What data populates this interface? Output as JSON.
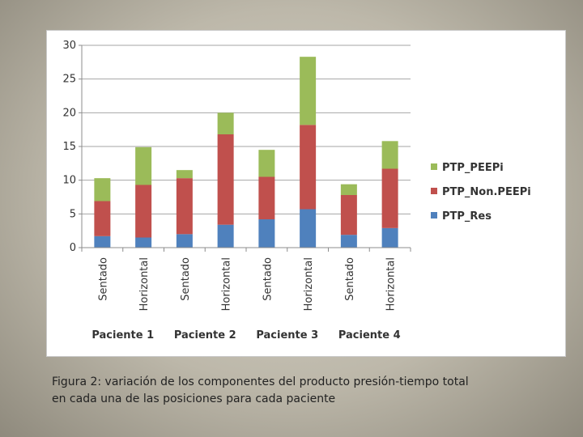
{
  "chart_data": {
    "type": "bar",
    "stacked": true,
    "categories": [
      "Sentado",
      "Horizontal",
      "Sentado",
      "Horizontal",
      "Sentado",
      "Horizontal",
      "Sentado",
      "Horizontal"
    ],
    "groups": [
      {
        "label": "Paciente 1",
        "categories": [
          0,
          1
        ]
      },
      {
        "label": "Paciente 2",
        "categories": [
          2,
          3
        ]
      },
      {
        "label": "Paciente 3",
        "categories": [
          4,
          5
        ]
      },
      {
        "label": "Paciente 4",
        "categories": [
          6,
          7
        ]
      }
    ],
    "series": [
      {
        "name": "PTP_Res",
        "color": "#4f81bd",
        "values": [
          1.7,
          1.5,
          2.0,
          3.4,
          4.2,
          5.7,
          1.9,
          2.9
        ]
      },
      {
        "name": "PTP_Non.PEEPi",
        "color": "#c0504d",
        "values": [
          5.2,
          7.8,
          8.3,
          13.4,
          6.3,
          12.5,
          5.9,
          8.8
        ]
      },
      {
        "name": "PTP_PEEPi",
        "color": "#9bbb59",
        "values": [
          3.4,
          5.6,
          1.2,
          3.2,
          4.0,
          10.1,
          1.6,
          4.1
        ]
      }
    ],
    "yticks": [
      0,
      5,
      10,
      15,
      20,
      25,
      30
    ],
    "ylim": [
      0,
      30
    ],
    "grid": true,
    "legend_position": "right"
  },
  "caption": {
    "line1": "Figura 2: variación de los componentes del producto presión-tiempo total",
    "line2": "en cada una de las posiciones para cada paciente"
  }
}
